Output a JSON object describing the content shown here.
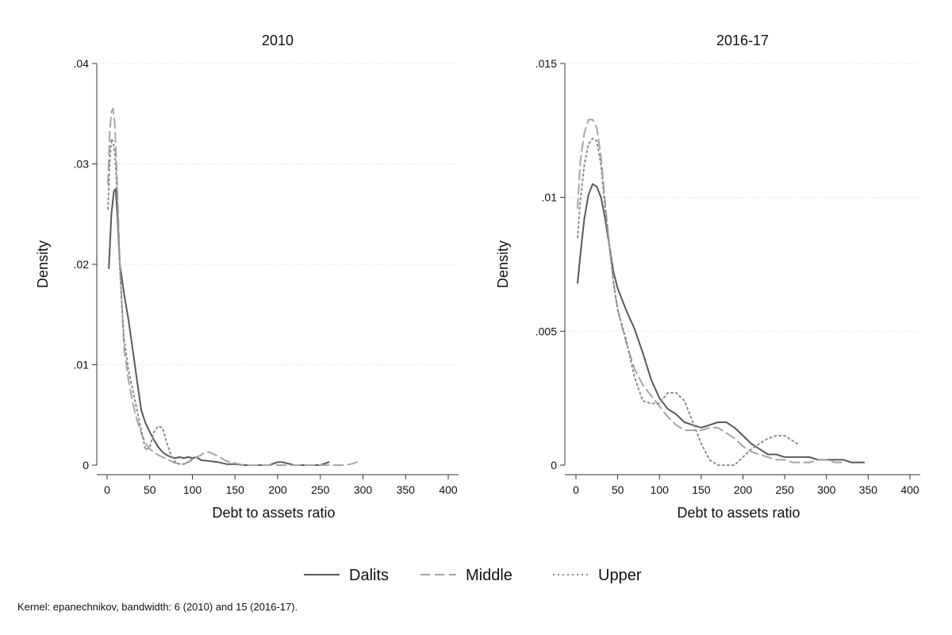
{
  "figure": {
    "note": "Kernel: epanechnikov, bandwidth: 6 (2010) and 15 (2016-17)."
  },
  "chart_data": [
    {
      "type": "line",
      "title": "2010",
      "xlabel": "Debt to assets ratio",
      "ylabel": "Density",
      "xlim": [
        0,
        400
      ],
      "ylim": [
        0,
        0.04
      ],
      "xticks": [
        0,
        50,
        100,
        150,
        200,
        250,
        300,
        350,
        400
      ],
      "xtick_labels": [
        "0",
        "50",
        "100",
        "150",
        "200",
        "250",
        "300",
        "350",
        "400"
      ],
      "yticks": [
        0,
        0.01,
        0.02,
        0.03,
        0.04
      ],
      "ytick_labels": [
        "0",
        ".01",
        ".02",
        ".03",
        ".04"
      ],
      "grid": true,
      "series": [
        {
          "name": "Dalits",
          "x": [
            2,
            5,
            8,
            10,
            12,
            15,
            20,
            25,
            30,
            35,
            40,
            45,
            50,
            55,
            60,
            65,
            70,
            75,
            80,
            85,
            90,
            95,
            100,
            105,
            110,
            120,
            130,
            140,
            150,
            160,
            170,
            180,
            190,
            200,
            205,
            210,
            220,
            230,
            240,
            250,
            260
          ],
          "y": [
            0.0196,
            0.025,
            0.0273,
            0.0275,
            0.025,
            0.02,
            0.017,
            0.0145,
            0.0115,
            0.0085,
            0.0055,
            0.0042,
            0.0033,
            0.0025,
            0.0018,
            0.0013,
            0.001,
            0.0008,
            0.0007,
            0.0008,
            0.0007,
            0.0008,
            0.0007,
            0.0008,
            0.0005,
            0.0004,
            0.0003,
            0.0001,
            0.0001,
            0,
            0,
            0,
            0,
            0.0003,
            0.0003,
            0.0002,
            0,
            0,
            0,
            0,
            0.0003
          ]
        },
        {
          "name": "Middle",
          "x": [
            1,
            3,
            5,
            7,
            9,
            11,
            13,
            15,
            18,
            20,
            25,
            30,
            35,
            40,
            45,
            50,
            55,
            60,
            65,
            70,
            75,
            80,
            90,
            100,
            105,
            110,
            115,
            120,
            130,
            140,
            150,
            160,
            170,
            180,
            190,
            200,
            210,
            220,
            230,
            240,
            250,
            260,
            270,
            280,
            290,
            295
          ],
          "y": [
            0.028,
            0.033,
            0.0352,
            0.0355,
            0.034,
            0.03,
            0.025,
            0.02,
            0.015,
            0.0115,
            0.0085,
            0.0062,
            0.0045,
            0.0032,
            0.0022,
            0.0016,
            0.0013,
            0.001,
            0.0008,
            0.0006,
            0.0004,
            0.0002,
            0.0001,
            0.0005,
            0.0008,
            0.001,
            0.0013,
            0.0013,
            0.0009,
            0.0004,
            0.0002,
            0,
            0,
            0,
            0,
            0,
            0,
            0,
            0,
            0,
            0,
            0,
            0,
            0,
            0.0002,
            0.0004
          ]
        },
        {
          "name": "Upper",
          "x": [
            1,
            3,
            5,
            7,
            9,
            11,
            13,
            15,
            18,
            20,
            25,
            30,
            35,
            40,
            45,
            50,
            55,
            60,
            65,
            70,
            75,
            80,
            85,
            90,
            95,
            100
          ],
          "y": [
            0.0255,
            0.03,
            0.0325,
            0.0322,
            0.031,
            0.0285,
            0.024,
            0.0195,
            0.015,
            0.0125,
            0.0095,
            0.0075,
            0.0055,
            0.0035,
            0.0015,
            0.0018,
            0.0033,
            0.0039,
            0.0037,
            0.0022,
            0.001,
            0.0003,
            0.0001,
            0.0001,
            0.0003,
            0.0006
          ]
        }
      ]
    },
    {
      "type": "line",
      "title": "2016-17",
      "xlabel": "Debt to assets ratio",
      "ylabel": "Density",
      "xlim": [
        0,
        400
      ],
      "ylim": [
        0,
        0.015
      ],
      "xticks": [
        0,
        50,
        100,
        150,
        200,
        250,
        300,
        350,
        400
      ],
      "xtick_labels": [
        "0",
        "50",
        "100",
        "150",
        "200",
        "250",
        "300",
        "350",
        "400"
      ],
      "yticks": [
        0,
        0.005,
        0.01,
        0.015
      ],
      "ytick_labels": [
        "0",
        ".005",
        ".01",
        ".015"
      ],
      "grid": true,
      "series": [
        {
          "name": "Dalits",
          "x": [
            2,
            5,
            10,
            15,
            20,
            25,
            30,
            35,
            40,
            45,
            50,
            60,
            70,
            80,
            90,
            100,
            110,
            120,
            130,
            140,
            150,
            160,
            170,
            180,
            190,
            200,
            210,
            220,
            230,
            240,
            250,
            260,
            270,
            280,
            290,
            300,
            310,
            320,
            330,
            340,
            345
          ],
          "y": [
            0.0068,
            0.0078,
            0.0092,
            0.0101,
            0.0105,
            0.0104,
            0.01,
            0.0092,
            0.0082,
            0.0072,
            0.0066,
            0.0058,
            0.0051,
            0.0042,
            0.0032,
            0.0025,
            0.0021,
            0.0019,
            0.0016,
            0.0015,
            0.0014,
            0.0015,
            0.0016,
            0.0016,
            0.0014,
            0.0011,
            0.0008,
            0.0006,
            0.0004,
            0.0004,
            0.0003,
            0.0003,
            0.0003,
            0.0003,
            0.0002,
            0.0002,
            0.0002,
            0.0002,
            0.0001,
            0.0001,
            0.0001
          ]
        },
        {
          "name": "Middle",
          "x": [
            2,
            5,
            10,
            15,
            20,
            25,
            30,
            35,
            40,
            45,
            50,
            60,
            70,
            80,
            90,
            100,
            110,
            120,
            130,
            140,
            150,
            160,
            170,
            180,
            190,
            200,
            210,
            220,
            230,
            240,
            250,
            260,
            270,
            280,
            290,
            300,
            310,
            320
          ],
          "y": [
            0.0096,
            0.0113,
            0.0124,
            0.0129,
            0.0129,
            0.0126,
            0.0115,
            0.0098,
            0.0082,
            0.0068,
            0.0058,
            0.0046,
            0.0036,
            0.003,
            0.0026,
            0.0022,
            0.0018,
            0.0015,
            0.0013,
            0.0013,
            0.0013,
            0.0014,
            0.0014,
            0.0012,
            0.001,
            0.0007,
            0.0005,
            0.0004,
            0.0003,
            0.0002,
            0.0002,
            0.0001,
            0.0001,
            0.0001,
            0.0002,
            0.0002,
            0.0001,
            0.0001
          ]
        },
        {
          "name": "Upper",
          "x": [
            2,
            5,
            10,
            15,
            20,
            25,
            30,
            35,
            40,
            45,
            50,
            60,
            70,
            80,
            90,
            100,
            110,
            120,
            130,
            140,
            150,
            160,
            170,
            180,
            190,
            200,
            210,
            220,
            230,
            240,
            250,
            260,
            265
          ],
          "y": [
            0.0085,
            0.0098,
            0.0112,
            0.012,
            0.0122,
            0.0121,
            0.0112,
            0.0096,
            0.0082,
            0.0068,
            0.0058,
            0.0047,
            0.0033,
            0.0024,
            0.0023,
            0.0023,
            0.0027,
            0.0027,
            0.0024,
            0.0016,
            0.0008,
            0.0002,
            0,
            0,
            0,
            0.0003,
            0.0006,
            0.0008,
            0.001,
            0.0011,
            0.0011,
            0.0009,
            0.0008
          ]
        }
      ]
    }
  ],
  "legend": {
    "placement": "bottom",
    "items": [
      {
        "label": "Dalits",
        "color": "#595959",
        "dash": "solid"
      },
      {
        "label": "Middle",
        "color": "#a6a6a6",
        "dash": "dash"
      },
      {
        "label": "Upper",
        "color": "#8c8c8c",
        "dash": "dot"
      }
    ]
  }
}
